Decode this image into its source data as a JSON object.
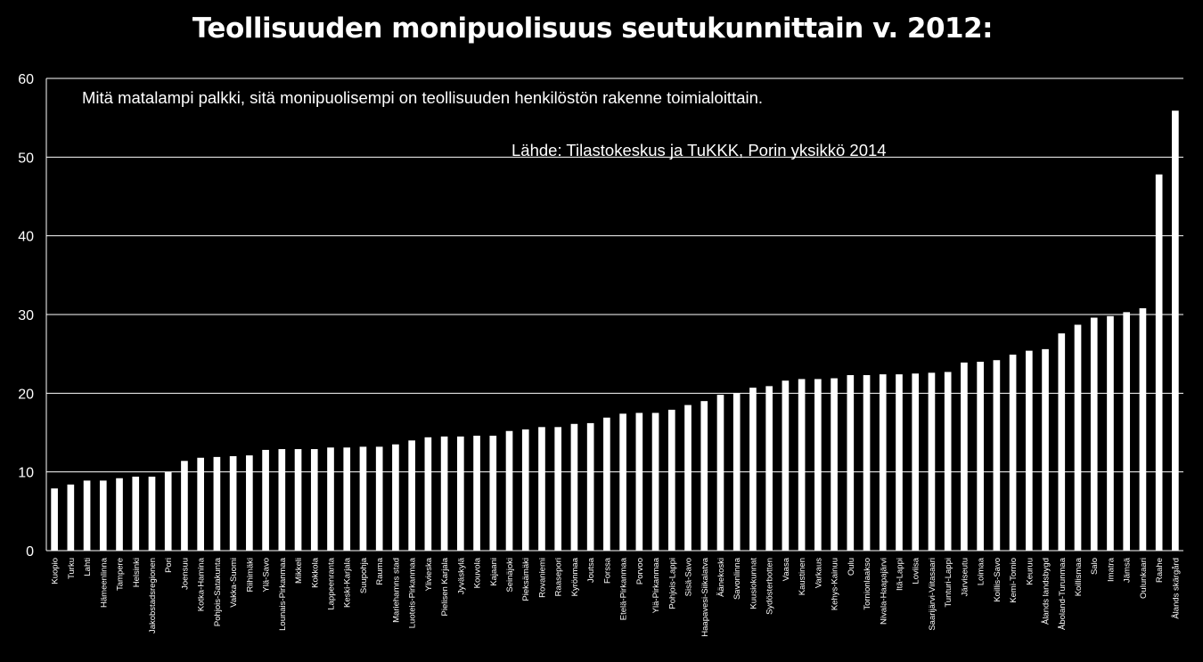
{
  "chart_data": {
    "type": "bar",
    "title": "Teollisuuden monipuolisuus seutukunnittain v. 2012:",
    "annotations": [
      "Mitä matalampi palkki, sitä monipuolisempi on teollisuuden henkilöstön rakenne toimialoittain.",
      "Lähde: Tilastokeskus ja TuKKK, Porin yksikkö 2014"
    ],
    "xlabel": "",
    "ylabel": "",
    "ylim": [
      0,
      60
    ],
    "yticks": [
      0,
      10,
      20,
      30,
      40,
      50,
      60
    ],
    "grid": true,
    "legend": "none",
    "bar_color": "#ffffff",
    "background": "#000000",
    "categories": [
      "Kuopio",
      "Turku",
      "Lahti",
      "Hämeenlinna",
      "Tampere",
      "Helsinki",
      "Jakobstadsregionen",
      "Pori",
      "Joensuu",
      "Kotka-Hamina",
      "Pohjois-Satakunta",
      "Vakka-Suomi",
      "Riihimäki",
      "Ylä-Savo",
      "Lounais-Pirkanmaa",
      "Mikkeli",
      "Kokkola",
      "Lappeenranta",
      "Keski-Karjala",
      "Suupohja",
      "Rauma",
      "Mariehamns stad",
      "Luoteis-Pirkanmaa",
      "Ylivieska",
      "Pielisen Karjala",
      "Jyväskylä",
      "Kouvola",
      "Kajaani",
      "Seinäjoki",
      "Pieksämäki",
      "Rovaniemi",
      "Raasepori",
      "Kyrönmaa",
      "Joutsa",
      "Forssa",
      "Etelä-Pirkanmaa",
      "Porvoo",
      "Ylä-Pirkanmaa",
      "Pohjois-Lappi",
      "Sisä-Savo",
      "Haapavesi-Siikalatva",
      "Äänekoski",
      "Savonlinna",
      "Kuusiokunnat",
      "Sydösterbotten",
      "Vaasa",
      "Kaustinen",
      "Varkaus",
      "Kehys-Kainuu",
      "Oulu",
      "Tornionlaakso",
      "Nivala-Haapajärvi",
      "Itä-Lappi",
      "Loviisa",
      "Saarijärvi-Viitasaari",
      "Tunturi-Lappi",
      "Järviseutu",
      "Loimaa",
      "Koillis-Savo",
      "Kemi-Tornio",
      "Keuruu",
      "Ålands landsbygd",
      "Åboland-Turunmaa",
      "Koillismaa",
      "Salo",
      "Imatra",
      "Jämsä",
      "Oulunkaari",
      "Raahe",
      "Ålands skärgård"
    ],
    "values": [
      7.9,
      8.4,
      8.9,
      8.9,
      9.2,
      9.4,
      9.4,
      10.0,
      11.4,
      11.8,
      11.9,
      12.0,
      12.1,
      12.8,
      12.9,
      12.9,
      12.9,
      13.1,
      13.1,
      13.2,
      13.2,
      13.5,
      14.0,
      14.4,
      14.5,
      14.5,
      14.6,
      14.6,
      15.2,
      15.4,
      15.7,
      15.7,
      16.1,
      16.2,
      16.9,
      17.4,
      17.5,
      17.5,
      17.9,
      18.5,
      19.0,
      19.8,
      20.0,
      20.7,
      20.9,
      21.6,
      21.8,
      21.8,
      21.9,
      22.3,
      22.3,
      22.4,
      22.4,
      22.5,
      22.6,
      22.7,
      23.9,
      24.0,
      24.2,
      24.9,
      25.4,
      25.6,
      27.6,
      28.7,
      29.6,
      29.8,
      30.3,
      30.8,
      47.8,
      55.9
    ]
  }
}
